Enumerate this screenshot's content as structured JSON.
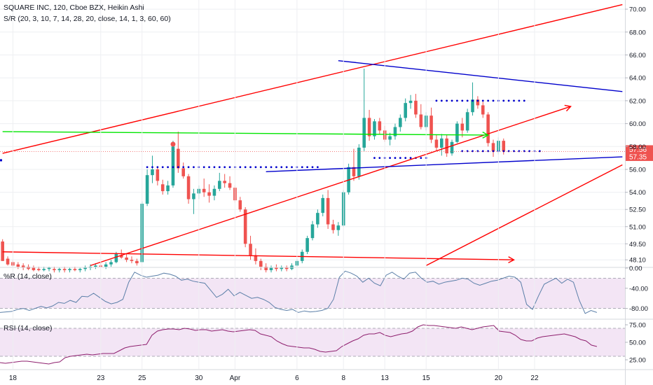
{
  "header": {
    "symbol_line": "SQUARE INC, 120, Cboe BZX, Heikin Ashi",
    "indicator_line": "S/R (20, 3, 10, 7, 14, 28, 20, close, 14, 1, 3, 60, 60)"
  },
  "colors": {
    "bull": "#26a69a",
    "bear": "#ef5350",
    "red_line": "#ff0000",
    "blue_line": "#0000cc",
    "green_line": "#00e600",
    "wr_line": "#5b7fa8",
    "rsi_line": "#8e1f6e",
    "band_fill": "#f3e5f5",
    "grid": "#eeeff2"
  },
  "chart_data": [
    {
      "type": "candlestick",
      "style": "Heikin Ashi",
      "ylim": [
        47.5,
        70.8
      ],
      "y_ticks": [
        "70.00",
        "68.00",
        "66.00",
        "64.00",
        "62.00",
        "60.00",
        "58.00",
        "56.00",
        "54.00",
        "52.50",
        "51.00",
        "49.50",
        "48.10"
      ],
      "y_tick_values": [
        70,
        68,
        66,
        64,
        62,
        60,
        58,
        56,
        54,
        52.5,
        51,
        49.5,
        48.1
      ],
      "x_ticks": [
        "18",
        "23",
        "25",
        "30",
        "Apr",
        "6",
        "8",
        "13",
        "15",
        "20",
        "22"
      ],
      "x_tick_index": [
        2,
        19,
        27,
        38,
        45,
        57,
        66,
        74,
        82,
        96,
        103
      ],
      "price_badges": [
        {
          "label": "57.56",
          "value": 57.56
        },
        {
          "label": "57.35",
          "value": 57.35
        }
      ],
      "candles": [
        [
          49.7,
          49.9,
          48.0,
          48.0
        ],
        [
          48.2,
          48.4,
          47.6,
          47.7
        ],
        [
          47.9,
          48.1,
          47.4,
          47.6
        ],
        [
          47.7,
          47.9,
          47.3,
          47.5
        ],
        [
          47.6,
          47.8,
          47.2,
          47.4
        ],
        [
          47.5,
          47.7,
          47.2,
          47.3
        ],
        [
          47.4,
          47.6,
          47.1,
          47.2
        ],
        [
          47.3,
          47.5,
          47.1,
          47.2
        ],
        [
          47.2,
          47.5,
          47.1,
          47.3
        ],
        [
          47.3,
          47.5,
          47.1,
          47.4
        ],
        [
          47.3,
          47.5,
          47.0,
          47.2
        ],
        [
          47.2,
          47.4,
          47.0,
          47.3
        ],
        [
          47.3,
          47.5,
          47.0,
          47.2
        ],
        [
          47.2,
          47.4,
          47.0,
          47.3
        ],
        [
          47.3,
          47.5,
          47.1,
          47.2
        ],
        [
          47.2,
          47.4,
          47.0,
          47.3
        ],
        [
          47.3,
          47.6,
          47.1,
          47.4
        ],
        [
          47.4,
          47.7,
          47.2,
          47.5
        ],
        [
          47.5,
          47.8,
          47.3,
          47.6
        ],
        [
          47.6,
          47.9,
          47.4,
          47.5
        ],
        [
          47.5,
          47.9,
          47.3,
          47.7
        ],
        [
          47.7,
          48.1,
          47.5,
          47.9
        ],
        [
          47.9,
          48.8,
          47.8,
          48.6
        ],
        [
          48.5,
          49.0,
          48.2,
          48.3
        ],
        [
          48.3,
          48.6,
          47.9,
          48.1
        ],
        [
          48.1,
          48.4,
          47.8,
          48.0
        ],
        [
          48.0,
          48.2,
          47.6,
          47.8
        ],
        [
          47.9,
          53.2,
          47.9,
          53.0
        ],
        [
          53.0,
          56.0,
          52.8,
          55.5
        ],
        [
          55.5,
          57.2,
          54.8,
          56.0
        ],
        [
          56.0,
          56.2,
          54.6,
          55.0
        ],
        [
          54.7,
          55.1,
          53.8,
          54.1
        ],
        [
          54.1,
          55.0,
          53.8,
          54.6
        ],
        [
          54.6,
          58.5,
          54.4,
          58.0
        ],
        [
          57.8,
          59.3,
          55.7,
          56.1
        ],
        [
          56.1,
          56.6,
          55.2,
          55.4
        ],
        [
          55.4,
          55.6,
          53.0,
          53.4
        ],
        [
          53.4,
          54.3,
          52.1,
          53.9
        ],
        [
          53.9,
          54.6,
          53.4,
          54.3
        ],
        [
          54.3,
          55.2,
          53.6,
          54.0
        ],
        [
          54.0,
          54.7,
          53.1,
          53.7
        ],
        [
          53.7,
          54.6,
          53.3,
          54.3
        ],
        [
          54.3,
          55.7,
          54.1,
          55.0
        ],
        [
          55.0,
          55.6,
          54.4,
          54.8
        ],
        [
          54.8,
          55.4,
          54.2,
          54.4
        ],
        [
          54.4,
          54.6,
          53.1,
          53.3
        ],
        [
          53.3,
          53.6,
          52.3,
          52.5
        ],
        [
          52.5,
          52.7,
          49.2,
          49.5
        ],
        [
          49.5,
          50.2,
          48.1,
          48.5
        ],
        [
          48.5,
          49.1,
          47.7,
          48.0
        ],
        [
          48.0,
          48.2,
          47.2,
          47.5
        ],
        [
          47.5,
          47.8,
          47.0,
          47.2
        ],
        [
          47.2,
          47.6,
          47.0,
          47.4
        ],
        [
          47.4,
          47.7,
          47.1,
          47.3
        ],
        [
          47.3,
          47.6,
          47.1,
          47.4
        ],
        [
          47.4,
          47.6,
          47.1,
          47.3
        ],
        [
          47.3,
          47.8,
          47.2,
          47.6
        ],
        [
          47.6,
          48.2,
          47.5,
          48.0
        ],
        [
          48.0,
          49.0,
          47.8,
          48.8
        ],
        [
          48.8,
          50.2,
          48.6,
          50.0
        ],
        [
          50.0,
          51.5,
          49.8,
          51.2
        ],
        [
          51.2,
          52.5,
          50.9,
          52.2
        ],
        [
          52.2,
          53.8,
          51.9,
          53.5
        ],
        [
          53.5,
          54.2,
          50.8,
          51.2
        ],
        [
          51.2,
          51.6,
          50.4,
          50.7
        ],
        [
          50.7,
          51.4,
          50.2,
          51.1
        ],
        [
          51.1,
          54.2,
          51.0,
          54.0
        ],
        [
          54.0,
          56.5,
          53.8,
          56.2
        ],
        [
          56.2,
          57.8,
          55.0,
          55.4
        ],
        [
          55.4,
          58.2,
          55.1,
          57.9
        ],
        [
          57.9,
          64.8,
          57.6,
          60.5
        ],
        [
          60.5,
          61.2,
          58.5,
          58.9
        ],
        [
          58.9,
          60.4,
          58.6,
          60.2
        ],
        [
          60.2,
          60.5,
          59.1,
          59.4
        ],
        [
          59.4,
          59.8,
          58.4,
          58.6
        ],
        [
          58.6,
          59.2,
          58.1,
          58.9
        ],
        [
          58.9,
          60.0,
          58.6,
          59.7
        ],
        [
          59.7,
          60.8,
          59.3,
          60.5
        ],
        [
          60.5,
          62.2,
          60.2,
          61.8
        ],
        [
          61.8,
          62.5,
          61.3,
          62.0
        ],
        [
          62.0,
          62.6,
          60.5,
          60.8
        ],
        [
          60.8,
          61.7,
          59.5,
          59.7
        ],
        [
          59.7,
          61.0,
          59.4,
          60.7
        ],
        [
          60.7,
          61.4,
          58.3,
          58.6
        ],
        [
          58.6,
          59.0,
          57.6,
          57.9
        ],
        [
          57.9,
          59.1,
          57.2,
          58.7
        ],
        [
          58.7,
          59.0,
          57.1,
          57.4
        ],
        [
          57.4,
          58.6,
          57.2,
          58.4
        ],
        [
          58.4,
          60.2,
          58.3,
          60.0
        ],
        [
          60.0,
          60.5,
          58.8,
          59.4
        ],
        [
          59.4,
          61.3,
          59.2,
          61.0
        ],
        [
          61.0,
          63.6,
          60.7,
          62.1
        ],
        [
          62.1,
          62.4,
          61.3,
          61.6
        ],
        [
          61.6,
          61.9,
          60.5,
          60.8
        ],
        [
          60.8,
          61.0,
          58.0,
          58.3
        ],
        [
          58.3,
          58.6,
          57.1,
          57.6
        ],
        [
          57.6,
          58.8,
          57.3,
          58.5
        ],
        [
          58.5,
          58.7,
          57.3,
          57.6
        ]
      ],
      "drawn_lines": [
        {
          "name": "upper-red-channel",
          "color": "red",
          "from": [
            0,
            57.4
          ],
          "to": [
            120,
            70.4
          ]
        },
        {
          "name": "mid-red-trend",
          "color": "red",
          "from": [
            17,
            47.6
          ],
          "to": [
            110,
            61.5
          ],
          "arrow": true
        },
        {
          "name": "lower-red-trend",
          "color": "red",
          "from": [
            82,
            47.6
          ],
          "to": [
            120,
            56.4
          ]
        },
        {
          "name": "horizontal-red-ray",
          "color": "red",
          "from": [
            0,
            48.8
          ],
          "to": [
            99,
            48.1
          ],
          "arrow": true
        },
        {
          "name": "upper-blue-resistance",
          "color": "blue",
          "from": [
            65,
            65.5
          ],
          "to": [
            120,
            62.8
          ]
        },
        {
          "name": "lower-blue-support",
          "color": "blue",
          "from": [
            51,
            55.8
          ],
          "to": [
            120,
            57.1
          ]
        },
        {
          "name": "green-level",
          "color": "green",
          "from": [
            0,
            59.3
          ],
          "to": [
            94,
            59.0
          ],
          "arrow": true
        }
      ],
      "dotted_levels": [
        {
          "y": 56.2,
          "from": 28,
          "to": 61
        },
        {
          "y": 62.0,
          "from": 84,
          "to": 101
        },
        {
          "y": 57.6,
          "from": 89,
          "to": 104
        },
        {
          "y": 57.0,
          "from": 72,
          "to": 82
        }
      ],
      "markers": [
        {
          "type": "red-dot",
          "x": 33,
          "y": 58.2
        }
      ]
    },
    {
      "type": "line",
      "title": "%R (14, close)",
      "ylim": [
        -100,
        0
      ],
      "y_ticks": [
        "0.00",
        "-40.00",
        "-80.00"
      ],
      "y_tick_values": [
        0,
        -40,
        -80
      ],
      "band": [
        -20,
        -80
      ],
      "values": [
        -88,
        -87,
        -86,
        -82,
        -80,
        -84,
        -80,
        -76,
        -79,
        -75,
        -68,
        -70,
        -64,
        -68,
        -56,
        -57,
        -50,
        -58,
        -66,
        -71,
        -68,
        -62,
        -28,
        -8,
        -14,
        -18,
        -16,
        -14,
        -10,
        -12,
        -16,
        -24,
        -22,
        -26,
        -28,
        -30,
        -44,
        -58,
        -52,
        -42,
        -55,
        -48,
        -54,
        -60,
        -58,
        -62,
        -68,
        -78,
        -82,
        -84,
        -82,
        -88,
        -85,
        -87,
        -86,
        -84,
        -80,
        -62,
        -18,
        -6,
        -10,
        -16,
        -28,
        -20,
        -30,
        -35,
        -14,
        -8,
        -16,
        -22,
        -10,
        -8,
        -20,
        -28,
        -26,
        -32,
        -28,
        -26,
        -24,
        -20,
        -22,
        -30,
        -34,
        -30,
        -26,
        -24,
        -20,
        -16,
        -18,
        -28,
        -72,
        -82,
        -56,
        -32,
        -26,
        -20,
        -30,
        -22,
        -28,
        -64,
        -90,
        -84,
        -88
      ]
    },
    {
      "type": "line",
      "title": "RSI (14, close)",
      "ylim": [
        12,
        82
      ],
      "y_ticks": [
        "75.00",
        "50.00",
        "25.00"
      ],
      "y_tick_values": [
        75,
        50,
        25
      ],
      "band": [
        70,
        30
      ],
      "values": [
        21,
        20,
        21,
        22,
        23,
        23,
        22,
        21,
        20,
        19,
        21,
        22,
        28,
        30,
        31,
        32,
        33,
        32,
        33,
        34,
        34,
        34,
        38,
        42,
        44,
        45,
        46,
        47,
        60,
        66,
        68,
        69,
        69,
        68,
        70,
        69,
        67,
        68,
        68,
        66,
        67,
        68,
        66,
        65,
        66,
        67,
        68,
        67,
        62,
        60,
        58,
        52,
        48,
        45,
        44,
        43,
        42,
        42,
        40,
        37,
        36,
        37,
        38,
        44,
        48,
        52,
        55,
        60,
        62,
        62,
        64,
        60,
        58,
        60,
        62,
        63,
        66,
        72,
        75,
        74,
        74,
        73,
        72,
        71,
        70,
        72,
        70,
        68,
        70,
        72,
        73,
        74,
        66,
        65,
        64,
        60,
        54,
        52,
        52,
        56,
        58,
        59,
        60,
        61,
        62,
        60,
        58,
        54,
        52,
        46,
        44
      ]
    }
  ]
}
